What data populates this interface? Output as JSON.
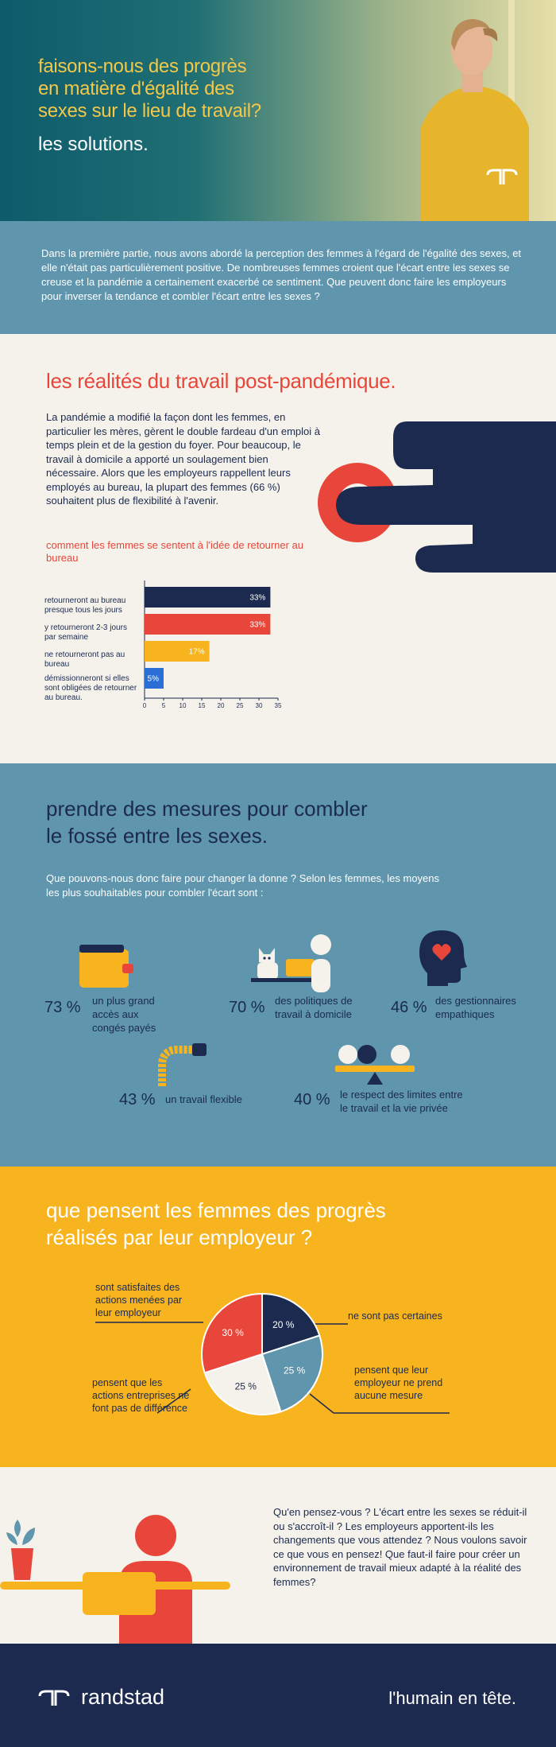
{
  "hero": {
    "title": "faisons-nous des progrès\nen matière d'égalité des\nsexes sur le lieu de travail?",
    "subtitle": "les solutions."
  },
  "intro": {
    "text": "Dans la première partie, nous avons abordé la perception des femmes à l'égard de l'égalité des sexes, et elle n'était pas particulièrement positive. De nombreuses femmes croient que l'écart entre les sexes se creuse et la pandémie a certainement exacerbé ce sentiment. Que peuvent donc faire les employeurs pour inverser la tendance et combler l'écart entre les sexes ?"
  },
  "realities": {
    "title": "les réalités du travail post-pandémique.",
    "body": "La pandémie a modifié la façon dont les femmes, en particulier les mères, gèrent le double fardeau d'un emploi à temps plein et de la gestion du foyer. Pour beaucoup, le travail à domicile a apporté un soulagement bien nécessaire. Alors que les employeurs rappellent leurs employés au bureau, la plupart des femmes (66 %) souhaitent plus de flexibilité à l'avenir.",
    "chart_title": "comment les femmes se sentent à l'idée de retourner au bureau"
  },
  "chart_data": [
    {
      "type": "bar",
      "orientation": "horizontal",
      "title": "comment les femmes se sentent à l'idée de retourner au bureau",
      "categories": [
        "retourneront au bureau presque tous les jours",
        "y retourneront 2-3 jours par semaine",
        "ne retourneront pas au bureau",
        "démissionneront si elles sont obligées de retourner au bureau."
      ],
      "values": [
        33,
        33,
        17,
        5
      ],
      "value_labels": [
        "33%",
        "33%",
        "17%",
        "5%"
      ],
      "colors": [
        "#1b2a4e",
        "#e8463a",
        "#f8b41e",
        "#2b6fd6"
      ],
      "xticks": [
        "0",
        "5",
        "10",
        "15",
        "20",
        "25",
        "30",
        "35"
      ],
      "xlim": [
        0,
        35
      ],
      "grid": false
    },
    {
      "type": "pie",
      "title": "que pensent les femmes des progrès réalisés par leur employeur ?",
      "slices": [
        {
          "label": "ne sont pas certaines",
          "value": 20,
          "text": "20 %",
          "color": "#1b2a4e"
        },
        {
          "label": "pensent que leur employeur ne prend aucune mesure",
          "value": 25,
          "text": "25 %",
          "color": "#5f95ad"
        },
        {
          "label": "pensent que les actions entreprises ne font pas de différence",
          "value": 25,
          "text": "25 %",
          "color": "#f5f2ec"
        },
        {
          "label": "sont satisfaites des actions menées par leur employeur",
          "value": 30,
          "text": "30 %",
          "color": "#e8463a"
        }
      ]
    }
  ],
  "measures": {
    "title": "prendre des mesures pour combler\nle fossé entre les sexes.",
    "intro": "Que pouvons-nous donc faire pour changer la donne ? Selon les femmes, les moyens les plus souhaitables pour combler l'écart sont :",
    "items": [
      {
        "pct": "73 %",
        "label": "un plus grand\naccès aux\ncongés payés",
        "icon": "wallet-icon"
      },
      {
        "pct": "70 %",
        "label": "des politiques de\ntravail à domicile",
        "icon": "home-office-icon"
      },
      {
        "pct": "46 %",
        "label": "des gestionnaires\nempathiques",
        "icon": "head-heart-icon"
      },
      {
        "pct": "43 %",
        "label": "un travail flexible",
        "icon": "flexible-pipe-icon"
      },
      {
        "pct": "40 %",
        "label": "le respect des limites entre\nle travail et la vie privée",
        "icon": "balance-icon"
      }
    ]
  },
  "progress": {
    "title": "que pensent les femmes des progrès\nréalisés par leur employeur ?",
    "labels": {
      "satisfied": "sont satisfaites des\nactions menées par\nleur employeur",
      "unsure": "ne sont pas certaines",
      "no_difference": "pensent que les\nactions entreprises ne\nfont pas de différence",
      "no_action": "pensent que leur\nemployeur ne prend\naucune mesure"
    }
  },
  "opinion": {
    "text": "Qu'en pensez-vous ? L'écart entre les sexes se réduit-il ou s'accroît-il ? Les employeurs apportent-ils les changements que vous attendez ? Nous voulons savoir ce que vous en pensez! Que faut-il faire pour créer un environnement de travail mieux adapté à la réalité des femmes?"
  },
  "footer": {
    "brand": "randstad",
    "tagline": "l'humain en tête."
  },
  "colors": {
    "navy": "#1b2a4e",
    "red": "#e8463a",
    "yellow": "#f8b41e",
    "blue": "#5f95ad",
    "cream": "#f5f2ec"
  }
}
